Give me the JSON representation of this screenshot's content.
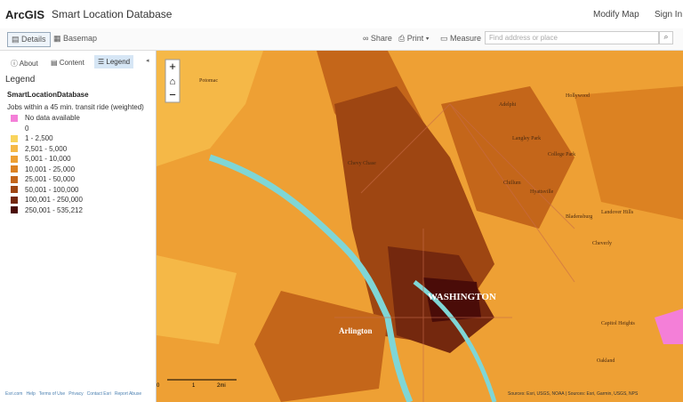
{
  "header": {
    "app": "ArcGIS",
    "title": "Smart Location Database",
    "modify": "Modify Map",
    "sign_in": "Sign In"
  },
  "toolbar": {
    "details": "Details",
    "basemap": "Basemap",
    "share": "Share",
    "print": "Print",
    "measure": "Measure",
    "search": "Find address or place"
  },
  "tabs": {
    "about": "About",
    "content": "Content",
    "legend": "Legend"
  },
  "legend": {
    "heading": "Legend",
    "layer": "SmartLocationDatabase",
    "field": "Jobs within a 45 min. transit ride (weighted)",
    "items": [
      {
        "label": "No data available",
        "color": "#f47fd8"
      },
      {
        "label": "0",
        "color": "#ffffff"
      },
      {
        "label": "1 - 2,500",
        "color": "#f9d45c"
      },
      {
        "label": "2,501 - 5,000",
        "color": "#f5b847"
      },
      {
        "label": "5,001 - 10,000",
        "color": "#eea034"
      },
      {
        "label": "10,001 - 25,000",
        "color": "#dc8222"
      },
      {
        "label": "25,001 - 50,000",
        "color": "#c4661a"
      },
      {
        "label": "50,001 - 100,000",
        "color": "#9e4612"
      },
      {
        "label": "100,001 - 250,000",
        "color": "#74280e"
      },
      {
        "label": "250,001 - 535,212",
        "color": "#4a0c08"
      }
    ]
  },
  "footer": [
    "Esri.com",
    "Help",
    "Terms of Use",
    "Privacy",
    "Contact Esri",
    "Report Abuse"
  ],
  "map": {
    "labels": [
      "WASHINGTON",
      "Arlington",
      "Hollywood",
      "Adelphi",
      "Langley Park",
      "College Park",
      "Chillum",
      "Hyattsville",
      "Bladensburg",
      "Cheverly",
      "Landover Hills",
      "Chevy Chase",
      "Potomac",
      "Oakland",
      "Capitol Heights"
    ],
    "attribution": "Sources: Esri, USGS, NOAA | Sources: Esri, Garmin, USGS, NPS",
    "scale": [
      "0",
      "1",
      "2mi"
    ]
  }
}
